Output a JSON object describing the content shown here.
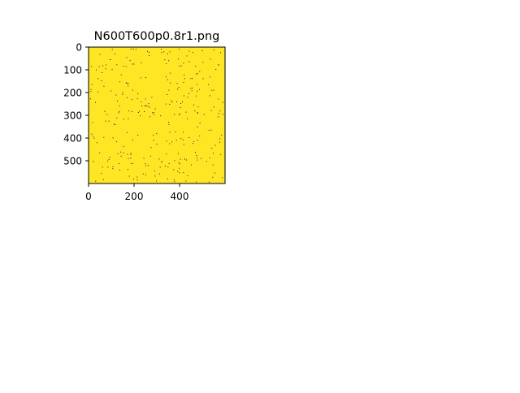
{
  "figure": {
    "background": "#ffffff"
  },
  "chart_data": {
    "type": "heatmap",
    "title": "N600T600p0.8r1.png",
    "xlabel": "",
    "ylabel": "",
    "xlim": [
      0,
      600
    ],
    "ylim": [
      600,
      0
    ],
    "x_ticks": [
      0,
      200,
      400
    ],
    "y_ticks": [
      0,
      100,
      200,
      300,
      400,
      500
    ],
    "x_tick_labels": [
      "0",
      "200",
      "400"
    ],
    "y_tick_labels": [
      "0",
      "100",
      "200",
      "300",
      "400",
      "500"
    ],
    "grid": false,
    "legend": "none",
    "colormap": "viridis",
    "colors": {
      "background_value_color": "#fde725",
      "dot_color": "#440154",
      "axis_color": "#000000"
    },
    "description_values": {
      "dominant_value": 1,
      "dot_value": 0,
      "p": 0.8,
      "N": 600,
      "T": 600
    }
  }
}
